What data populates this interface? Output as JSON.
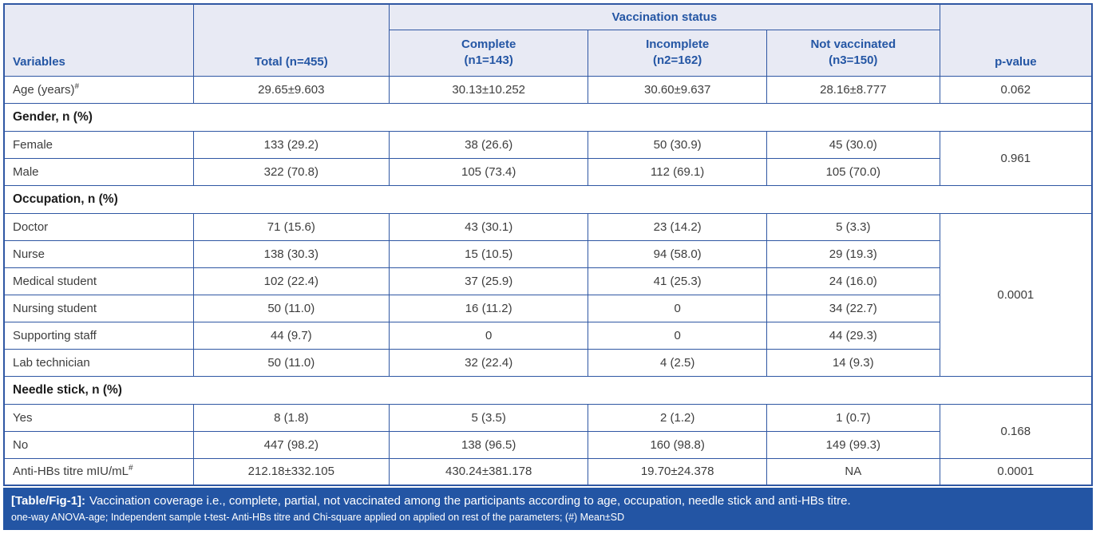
{
  "colors": {
    "border_blue": "#2f57a3",
    "header_bg": "#e8eaf4",
    "header_text_blue": "#2456a4",
    "body_text": "#3d3d3d",
    "footer_bg": "#2355a4",
    "footer_text": "#ffffff"
  },
  "table": {
    "header": {
      "variables": "Variables",
      "total": "Total (n=455)",
      "group": "Vaccination status",
      "columns": [
        "Complete\n(n1=143)",
        "Incomplete\n(n2=162)",
        "Not vaccinated\n(n3=150)"
      ],
      "pvalue": "p-value"
    },
    "rows": [
      {
        "type": "data",
        "label": "Age (years)",
        "sup": "#",
        "cells": [
          "29.65±9.603",
          "30.13±10.252",
          "30.60±9.637",
          "28.16±8.777"
        ],
        "pvalue": "0.062",
        "pspan": 1
      },
      {
        "type": "section",
        "label": "Gender, n (%)"
      },
      {
        "type": "data",
        "label": "Female",
        "cells": [
          "133 (29.2)",
          "38 (26.6)",
          "50 (30.9)",
          "45 (30.0)"
        ],
        "pvalue": "0.961",
        "pspan": 2
      },
      {
        "type": "data",
        "label": "Male",
        "cells": [
          "322 (70.8)",
          "105 (73.4)",
          "112 (69.1)",
          "105 (70.0)"
        ]
      },
      {
        "type": "section",
        "label": "Occupation, n (%)"
      },
      {
        "type": "data",
        "label": "Doctor",
        "cells": [
          "71 (15.6)",
          "43 (30.1)",
          "23 (14.2)",
          "5 (3.3)"
        ],
        "pvalue": "0.0001",
        "pspan": 6
      },
      {
        "type": "data",
        "label": "Nurse",
        "cells": [
          "138 (30.3)",
          "15 (10.5)",
          "94 (58.0)",
          "29 (19.3)"
        ]
      },
      {
        "type": "data",
        "label": "Medical student",
        "cells": [
          "102 (22.4)",
          "37 (25.9)",
          "41 (25.3)",
          "24 (16.0)"
        ]
      },
      {
        "type": "data",
        "label": "Nursing student",
        "cells": [
          "50 (11.0)",
          "16 (11.2)",
          "0",
          "34 (22.7)"
        ]
      },
      {
        "type": "data",
        "label": "Supporting staff",
        "cells": [
          "44 (9.7)",
          "0",
          "0",
          "44 (29.3)"
        ]
      },
      {
        "type": "data",
        "label": "Lab technician",
        "cells": [
          "50 (11.0)",
          "32 (22.4)",
          "4 (2.5)",
          "14 (9.3)"
        ]
      },
      {
        "type": "section",
        "label": "Needle stick, n (%)"
      },
      {
        "type": "data",
        "label": "Yes",
        "cells": [
          "8 (1.8)",
          "5 (3.5)",
          "2 (1.2)",
          "1 (0.7)"
        ],
        "pvalue": "0.168",
        "pspan": 2
      },
      {
        "type": "data",
        "label": "No",
        "cells": [
          "447 (98.2)",
          "138 (96.5)",
          "160 (98.8)",
          "149 (99.3)"
        ]
      },
      {
        "type": "data",
        "label": "Anti-HBs titre mIU/mL",
        "sup": "#",
        "cells": [
          "212.18±332.105",
          "430.24±381.178",
          "19.70±24.378",
          "NA"
        ],
        "pvalue": "0.0001",
        "pspan": 1
      }
    ]
  },
  "footer": {
    "label": "[Table/Fig-1]:",
    "caption": "Vaccination coverage i.e., complete, partial, not vaccinated among the participants according to age, occupation, needle stick and anti-HBs titre.",
    "note": "one-way ANOVA-age; Independent sample t-test- Anti-HBs titre and Chi-square applied on applied on rest of the parameters; (#) Mean±SD"
  }
}
